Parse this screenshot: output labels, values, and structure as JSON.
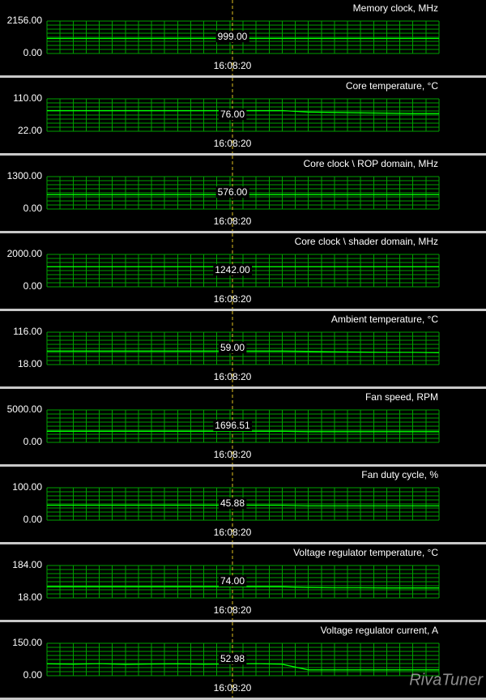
{
  "chart_data": [
    {
      "type": "line",
      "title": "Memory clock, MHz",
      "ylim": [
        0,
        2156
      ],
      "yticks": [
        {
          "value": 0,
          "label": "0.00"
        },
        {
          "value": 2156,
          "label": "2156.00"
        }
      ],
      "annotation": "999.00",
      "time_label": "16:08:20",
      "color": "#00ff00",
      "values": [
        999,
        999,
        999,
        999,
        999,
        999,
        999,
        999,
        999,
        999,
        999,
        999,
        999,
        999,
        999,
        999
      ]
    },
    {
      "type": "line",
      "title": "Core temperature, °C",
      "ylim": [
        22,
        110
      ],
      "yticks": [
        {
          "value": 22,
          "label": "22.00"
        },
        {
          "value": 110,
          "label": "110.00"
        }
      ],
      "annotation": "76.00",
      "time_label": "16:08:20",
      "color": "#00ff00",
      "values": [
        78,
        78,
        78,
        78,
        78,
        78,
        78,
        78,
        78,
        78,
        74,
        73,
        72,
        71,
        70,
        70
      ]
    },
    {
      "type": "line",
      "title": "Core clock \\ ROP domain, MHz",
      "ylim": [
        0,
        1300
      ],
      "yticks": [
        {
          "value": 0,
          "label": "0.00"
        },
        {
          "value": 1300,
          "label": "1300.00"
        }
      ],
      "annotation": "576.00",
      "time_label": "16:08:20",
      "color": "#00ff00",
      "values": [
        576,
        576,
        576,
        576,
        576,
        576,
        576,
        576,
        576,
        576,
        576,
        576,
        576,
        576,
        576,
        576
      ]
    },
    {
      "type": "line",
      "title": "Core clock \\ shader domain, MHz",
      "ylim": [
        0,
        2000
      ],
      "yticks": [
        {
          "value": 0,
          "label": "0.00"
        },
        {
          "value": 2000,
          "label": "2000.00"
        }
      ],
      "annotation": "1242.00",
      "time_label": "16:08:20",
      "color": "#00ff00",
      "values": [
        1242,
        1242,
        1242,
        1242,
        1242,
        1242,
        1242,
        1242,
        1242,
        1242,
        1242,
        1242,
        1242,
        1242,
        1242,
        1242
      ]
    },
    {
      "type": "line",
      "title": "Ambient temperature, °C",
      "ylim": [
        18,
        116
      ],
      "yticks": [
        {
          "value": 18,
          "label": "18.00"
        },
        {
          "value": 116,
          "label": "116.00"
        }
      ],
      "annotation": "59.00",
      "time_label": "16:08:20",
      "color": "#00ff00",
      "values": [
        59,
        59,
        59,
        59,
        59,
        59,
        59,
        59,
        59,
        59,
        58,
        57,
        56,
        55,
        55,
        54
      ]
    },
    {
      "type": "line",
      "title": "Fan speed, RPM",
      "ylim": [
        0,
        5000
      ],
      "yticks": [
        {
          "value": 0,
          "label": "0.00"
        },
        {
          "value": 5000,
          "label": "5000.00"
        }
      ],
      "annotation": "1696.51",
      "time_label": "16:08:20",
      "color": "#00ff00",
      "values": [
        1697,
        1697,
        1697,
        1697,
        1697,
        1697,
        1697,
        1697,
        1697,
        1697,
        1650,
        1650,
        1650,
        1650,
        1650,
        1650
      ]
    },
    {
      "type": "line",
      "title": "Fan duty cycle, %",
      "ylim": [
        0,
        100
      ],
      "yticks": [
        {
          "value": 0,
          "label": "0.00"
        },
        {
          "value": 100,
          "label": "100.00"
        }
      ],
      "annotation": "45.88",
      "time_label": "16:08:20",
      "color": "#00ff00",
      "values": [
        46,
        46,
        46,
        46,
        46,
        46,
        46,
        46,
        46,
        46,
        44,
        44,
        44,
        44,
        44,
        44
      ]
    },
    {
      "type": "line",
      "title": "Voltage regulator temperature, °C",
      "ylim": [
        18,
        184
      ],
      "yticks": [
        {
          "value": 18,
          "label": "18.00"
        },
        {
          "value": 184,
          "label": "184.00"
        }
      ],
      "annotation": "74.00",
      "time_label": "16:08:20",
      "color": "#00ff00",
      "values": [
        75,
        75,
        75,
        75,
        75,
        75,
        75,
        75,
        75,
        75,
        71,
        70,
        70,
        69,
        69,
        69
      ]
    },
    {
      "type": "line",
      "title": "Voltage regulator current, A",
      "ylim": [
        0,
        150
      ],
      "yticks": [
        {
          "value": 0,
          "label": "0.00"
        },
        {
          "value": 150,
          "label": "150.00"
        }
      ],
      "annotation": "52.98",
      "time_label": "16:08:20",
      "color": "#00ff00",
      "values": [
        55,
        53,
        56,
        52,
        54,
        55,
        53,
        54,
        56,
        53,
        27,
        27,
        27,
        27,
        27,
        27
      ]
    }
  ],
  "logo": "RivaTuner"
}
